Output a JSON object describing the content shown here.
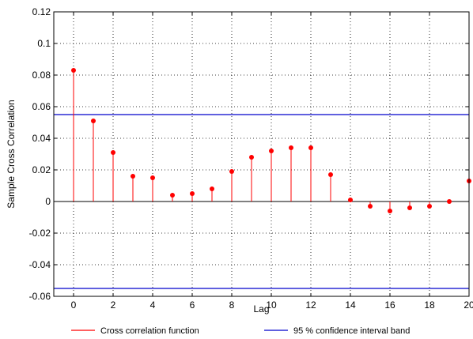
{
  "chart_data": {
    "type": "stem",
    "title": "",
    "xlabel": "Lag",
    "ylabel": "Sample Cross Correlation",
    "xlim": [
      -1,
      20
    ],
    "ylim": [
      -0.06,
      0.12
    ],
    "xticks": [
      0,
      2,
      4,
      6,
      8,
      10,
      12,
      14,
      16,
      18,
      20
    ],
    "yticks": [
      -0.06,
      -0.04,
      -0.02,
      0,
      0.02,
      0.04,
      0.06,
      0.08,
      0.1,
      0.12
    ],
    "ytick_labels": [
      "-0.06",
      "-0.04",
      "-0.02",
      "0",
      "0.02",
      "0.04",
      "0.06",
      "0.08",
      "0.1",
      "0.12"
    ],
    "grid": true,
    "legend_position": "bottom",
    "series": [
      {
        "name": "Cross correlation function",
        "color": "#ff0000",
        "x": [
          0,
          1,
          2,
          3,
          4,
          5,
          6,
          7,
          8,
          9,
          10,
          11,
          12,
          13,
          14,
          15,
          16,
          17,
          18,
          19,
          20
        ],
        "values": [
          0.083,
          0.051,
          0.031,
          0.016,
          0.015,
          0.004,
          0.005,
          0.008,
          0.019,
          0.028,
          0.032,
          0.034,
          0.034,
          0.017,
          0.001,
          -0.003,
          -0.006,
          -0.004,
          -0.003,
          0.0,
          0.013
        ]
      }
    ],
    "confidence_band": {
      "name": "95 % confidence interval band",
      "color": "#0000cc",
      "upper": 0.055,
      "lower": -0.055
    },
    "zero_line_color": "#000000"
  }
}
